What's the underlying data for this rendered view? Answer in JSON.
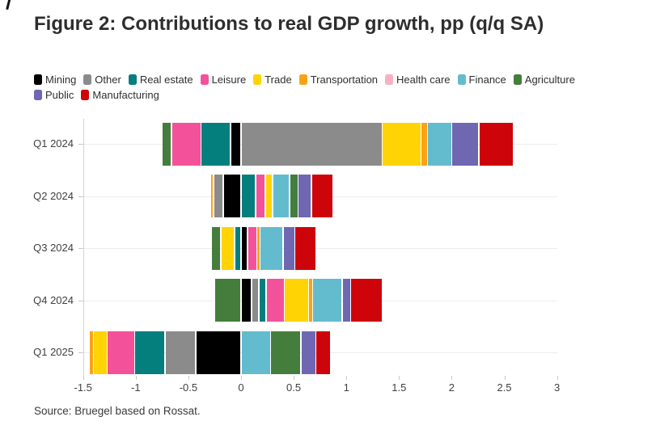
{
  "page": {
    "title": "Figure 2: Contributions to real GDP growth, pp (q/q SA)",
    "source": "Source: Bruegel based on Rossat."
  },
  "chart_data": {
    "type": "bar",
    "orientation": "horizontal",
    "stacked": true,
    "title": "Figure 2: Contributions to real GDP growth, pp (q/q SA)",
    "xlabel": "",
    "ylabel": "",
    "xlim": [
      -1.5,
      3
    ],
    "xticks": [
      -1.5,
      -1,
      -0.5,
      0,
      0.5,
      1,
      1.5,
      2,
      2.5,
      3
    ],
    "grid": "horizontal row lines only",
    "legend_position": "top",
    "legend": [
      {
        "label": "Mining",
        "color": "#000000"
      },
      {
        "label": "Other",
        "color": "#8b8b8b"
      },
      {
        "label": "Real estate",
        "color": "#047f7e"
      },
      {
        "label": "Leisure",
        "color": "#f3529b"
      },
      {
        "label": "Trade",
        "color": "#ffd304"
      },
      {
        "label": "Transportation",
        "color": "#fba217"
      },
      {
        "label": "Health care",
        "color": "#f9b1c1"
      },
      {
        "label": "Finance",
        "color": "#63bcce"
      },
      {
        "label": "Agriculture",
        "color": "#457d3c"
      },
      {
        "label": "Public",
        "color": "#6f67b2"
      },
      {
        "label": "Manufacturing",
        "color": "#cd0409"
      }
    ],
    "categories": [
      "Q1 2024",
      "Q2 2024",
      "Q3 2024",
      "Q4 2024",
      "Q1 2025"
    ],
    "rows": [
      {
        "label": "Q1 2024",
        "segments": [
          {
            "category": "Agriculture",
            "value": -0.09
          },
          {
            "category": "Leisure",
            "value": -0.28
          },
          {
            "category": "Real estate",
            "value": -0.28
          },
          {
            "category": "Mining",
            "value": -0.1
          },
          {
            "category": "Other",
            "value": 1.34
          },
          {
            "category": "Trade",
            "value": 0.37
          },
          {
            "category": "Transportation",
            "value": 0.06
          },
          {
            "category": "Finance",
            "value": 0.23
          },
          {
            "category": "Public",
            "value": 0.26
          },
          {
            "category": "Manufacturing",
            "value": 0.33
          }
        ]
      },
      {
        "label": "Q2 2024",
        "segments": [
          {
            "category": "Transportation",
            "value": -0.03
          },
          {
            "category": "Other",
            "value": -0.09
          },
          {
            "category": "Mining",
            "value": -0.17
          },
          {
            "category": "Real estate",
            "value": 0.14
          },
          {
            "category": "Leisure",
            "value": 0.09
          },
          {
            "category": "Trade",
            "value": 0.07
          },
          {
            "category": "Finance",
            "value": 0.16
          },
          {
            "category": "Agriculture",
            "value": 0.08
          },
          {
            "category": "Public",
            "value": 0.13
          },
          {
            "category": "Manufacturing",
            "value": 0.2
          }
        ]
      },
      {
        "label": "Q3 2024",
        "segments": [
          {
            "category": "Agriculture",
            "value": -0.09
          },
          {
            "category": "Trade",
            "value": -0.13
          },
          {
            "category": "Real estate",
            "value": -0.06
          },
          {
            "category": "Mining",
            "value": 0.06
          },
          {
            "category": "Leisure",
            "value": 0.09
          },
          {
            "category": "Transportation",
            "value": 0.03
          },
          {
            "category": "Finance",
            "value": 0.22
          },
          {
            "category": "Public",
            "value": 0.11
          },
          {
            "category": "Manufacturing",
            "value": 0.2
          }
        ]
      },
      {
        "label": "Q4 2024",
        "segments": [
          {
            "category": "Agriculture",
            "value": -0.25
          },
          {
            "category": "Mining",
            "value": 0.1
          },
          {
            "category": "Other",
            "value": 0.07
          },
          {
            "category": "Real estate",
            "value": 0.07
          },
          {
            "category": "Leisure",
            "value": 0.17
          },
          {
            "category": "Trade",
            "value": 0.23
          },
          {
            "category": "Transportation",
            "value": 0.04
          },
          {
            "category": "Finance",
            "value": 0.28
          },
          {
            "category": "Public",
            "value": 0.08
          },
          {
            "category": "Manufacturing",
            "value": 0.3
          }
        ]
      },
      {
        "label": "Q1 2025",
        "segments": [
          {
            "category": "Transportation",
            "value": -0.04
          },
          {
            "category": "Trade",
            "value": -0.13
          },
          {
            "category": "Leisure",
            "value": -0.26
          },
          {
            "category": "Real estate",
            "value": -0.29
          },
          {
            "category": "Other",
            "value": -0.29
          },
          {
            "category": "Mining",
            "value": -0.43
          },
          {
            "category": "Finance",
            "value": 0.28
          },
          {
            "category": "Agriculture",
            "value": 0.29
          },
          {
            "category": "Public",
            "value": 0.14
          },
          {
            "category": "Manufacturing",
            "value": 0.14
          }
        ]
      }
    ]
  }
}
